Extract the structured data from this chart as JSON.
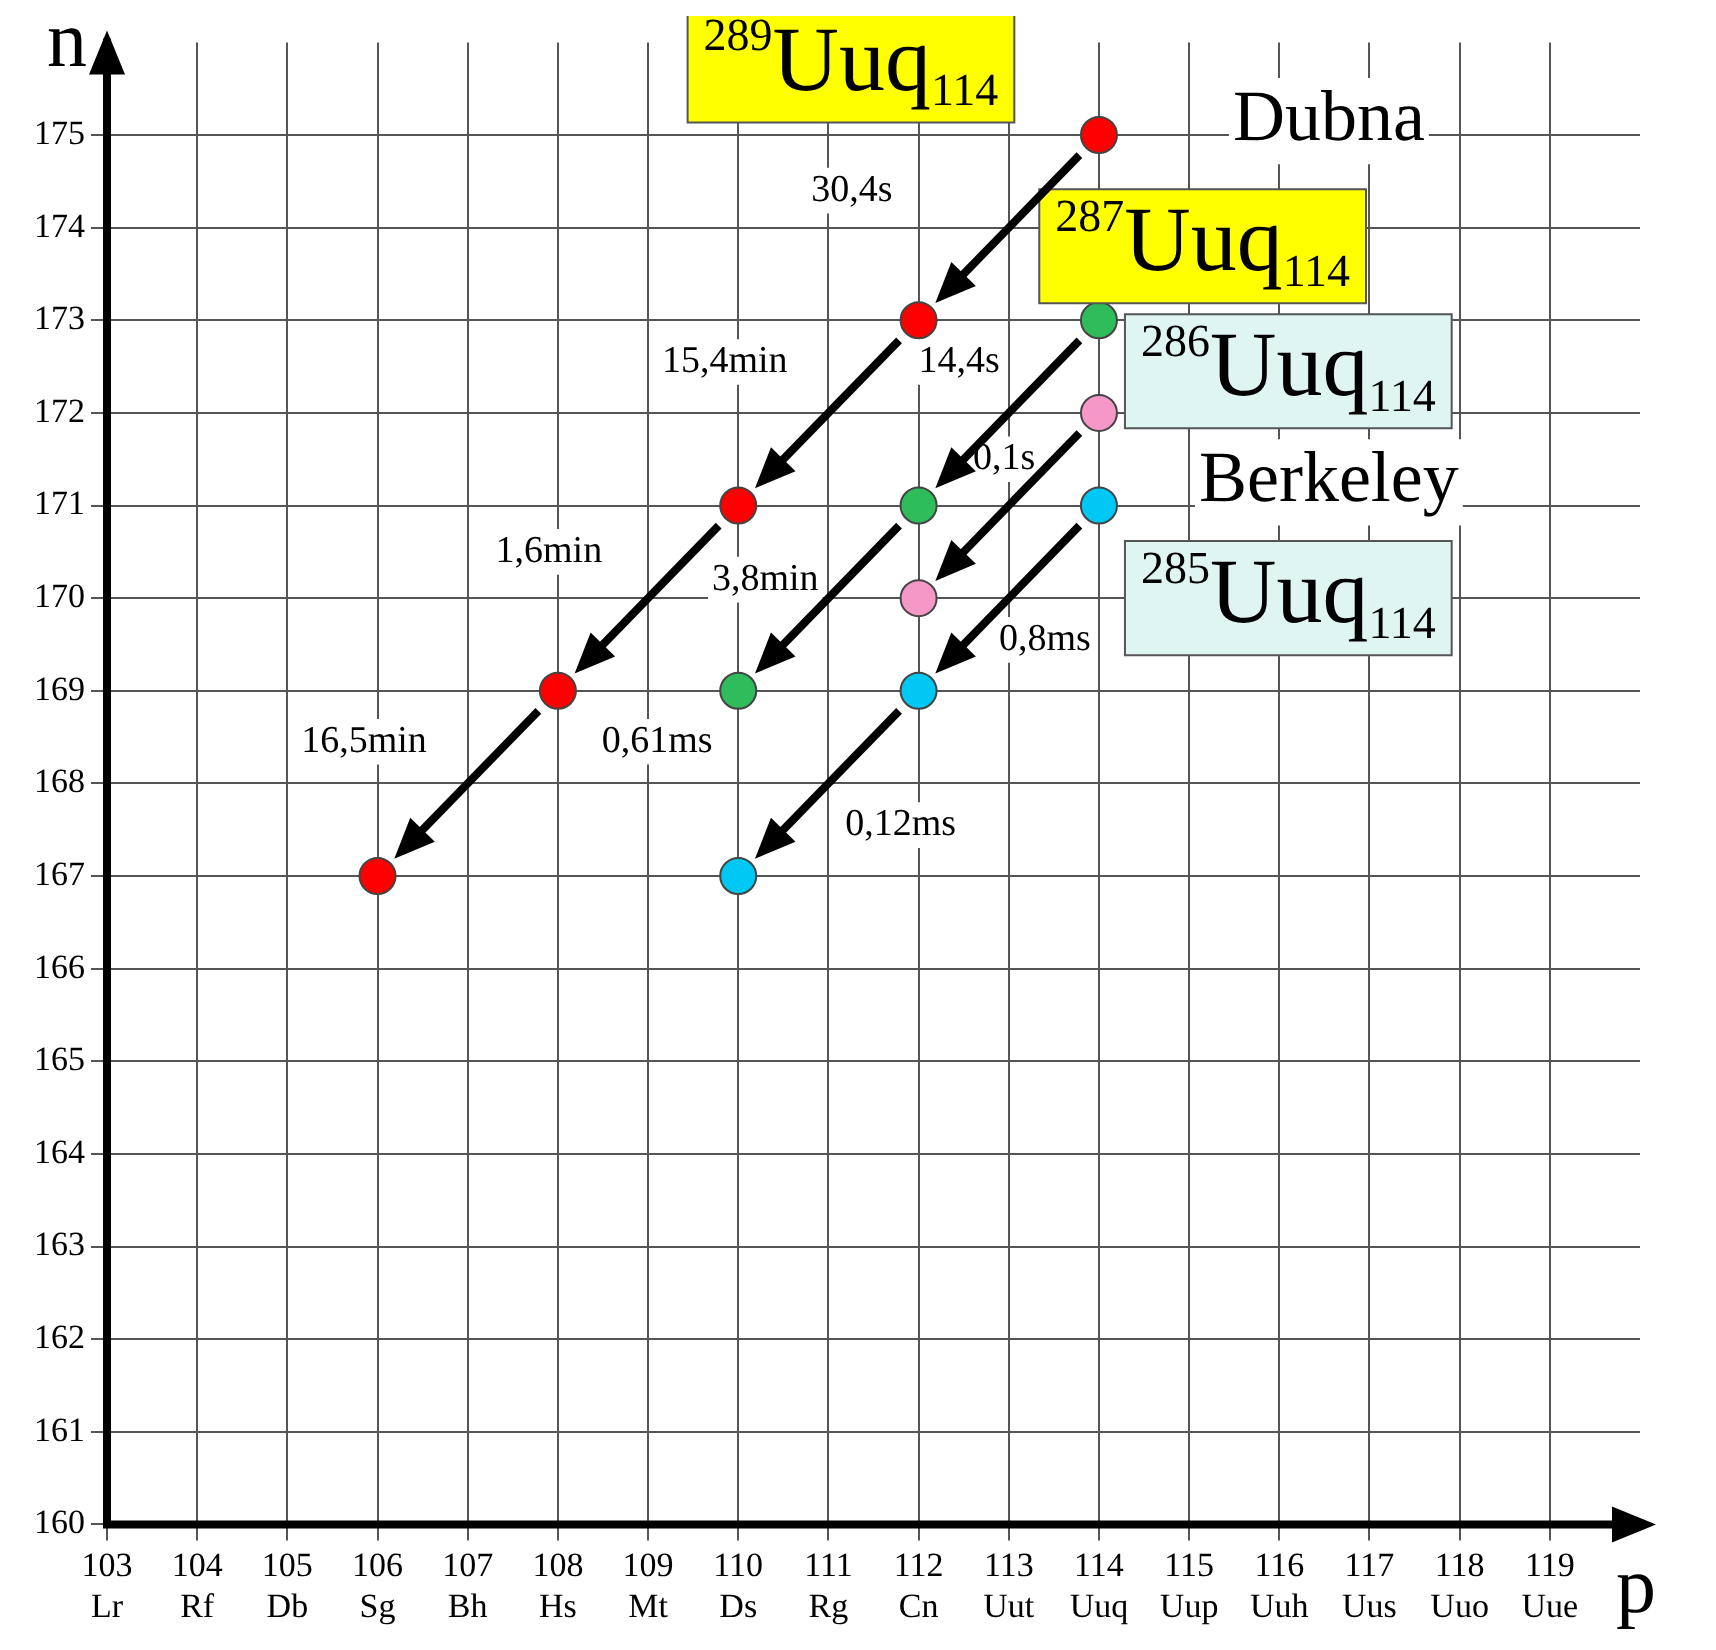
{
  "chart_data": {
    "type": "scatter",
    "xlabel": "p",
    "ylabel": "n",
    "xlim": [
      103,
      120
    ],
    "ylim": [
      160,
      176
    ],
    "xticks": [
      {
        "value": 103,
        "label": "103\nLr"
      },
      {
        "value": 104,
        "label": "104\nRf"
      },
      {
        "value": 105,
        "label": "105\nDb"
      },
      {
        "value": 106,
        "label": "106\nSg"
      },
      {
        "value": 107,
        "label": "107\nBh"
      },
      {
        "value": 108,
        "label": "108\nHs"
      },
      {
        "value": 109,
        "label": "109\nMt"
      },
      {
        "value": 110,
        "label": "110\nDs"
      },
      {
        "value": 111,
        "label": "111\nRg"
      },
      {
        "value": 112,
        "label": "112\nCn"
      },
      {
        "value": 113,
        "label": "113\nUut"
      },
      {
        "value": 114,
        "label": "114\nUuq"
      },
      {
        "value": 115,
        "label": "115\nUup"
      },
      {
        "value": 116,
        "label": "116\nUuh"
      },
      {
        "value": 117,
        "label": "117\nUus"
      },
      {
        "value": 118,
        "label": "118\nUuo"
      },
      {
        "value": 119,
        "label": "119\nUue"
      }
    ],
    "yticks": [
      160,
      161,
      162,
      163,
      164,
      165,
      166,
      167,
      168,
      169,
      170,
      171,
      172,
      173,
      174,
      175
    ],
    "grid": true,
    "legend": false,
    "marker": "circle",
    "series": [
      {
        "color": "#ff0000",
        "x": [
          114,
          112,
          110,
          108,
          106
        ],
        "values": [
          175,
          173,
          171,
          169,
          167
        ]
      },
      {
        "color": "#2ebd5a",
        "x": [
          114,
          112,
          110
        ],
        "values": [
          173,
          171,
          169
        ]
      },
      {
        "color": "#f598c8",
        "x": [
          114,
          112
        ],
        "values": [
          172,
          170
        ]
      },
      {
        "color": "#00c8f5",
        "x": [
          114,
          112,
          110
        ],
        "values": [
          171,
          169,
          167
        ]
      }
    ],
    "annotations": [
      "$^{289}$Uuq$_{114}$",
      "$^{287}$Uuq$_{114}$",
      "$^{286}$Uuq$_{114}$",
      "$^{285}$Uuq$_{114}$",
      "Dubna",
      "Berkeley",
      "30,4s",
      "15,4min",
      "14,4s",
      "0,1s",
      "1,6min",
      "3,8min",
      "0,8ms",
      "16,5min",
      "0,61ms",
      "0,12ms"
    ]
  }
}
